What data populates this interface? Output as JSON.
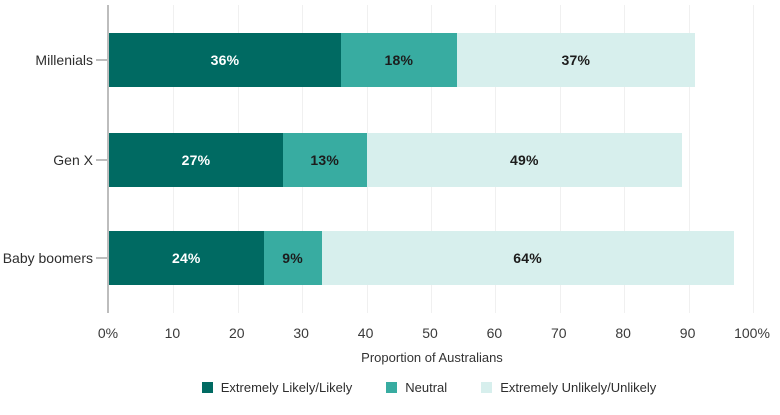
{
  "chart_data": {
    "type": "bar",
    "orientation": "horizontal",
    "stacked": true,
    "title": "",
    "xlabel": "Proportion of Australians",
    "ylabel": "",
    "xlim": [
      0,
      100
    ],
    "grid": "vertical-light",
    "legend_position": "bottom-center",
    "categories": [
      "Millenials",
      "Gen X",
      "Baby boomers"
    ],
    "series": [
      {
        "name": "Extremely Likely/Likely",
        "color": "#006a62",
        "label_color": "#ffffff",
        "values": [
          36,
          27,
          24
        ],
        "labels": [
          "36%",
          "27%",
          "24%"
        ]
      },
      {
        "name": "Neutral",
        "color": "#38aca1",
        "label_color": "#1c1c1c",
        "values": [
          18,
          13,
          9
        ],
        "labels": [
          "18%",
          "13%",
          "9%"
        ]
      },
      {
        "name": "Extremely Unlikely/Unlikely",
        "color": "#d7efed",
        "label_color": "#1c1c1c",
        "values": [
          37,
          49,
          64
        ],
        "labels": [
          "37%",
          "49%",
          "64%"
        ]
      }
    ],
    "x_tick_values": [
      0,
      10,
      20,
      30,
      40,
      50,
      60,
      70,
      80,
      90,
      100
    ],
    "x_tick_labels": [
      "0%",
      "10",
      "20",
      "30",
      "40",
      "50",
      "60",
      "70",
      "80",
      "90",
      "100%"
    ]
  },
  "style": {
    "axis_line_color": "#bdbdbd",
    "gridline_color": "#f0f0f0",
    "text_color": "#2e2e2e"
  }
}
